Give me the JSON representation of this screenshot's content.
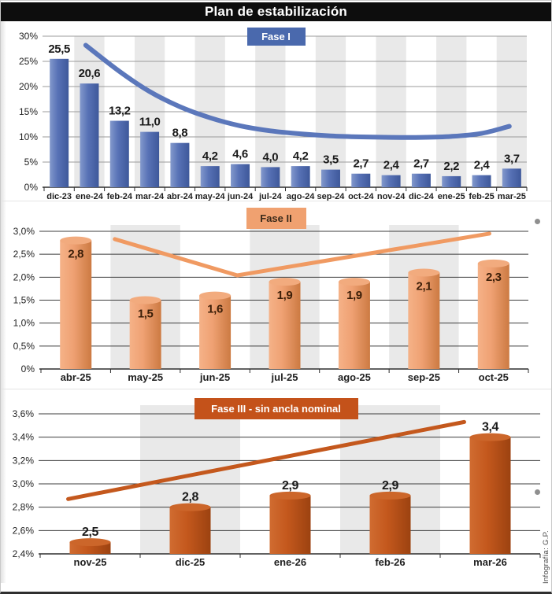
{
  "title": "Plan de estabilización",
  "footer_credit": "Infografía: G.P.",
  "colors": {
    "title_bar_bg": "#0d0d0d",
    "title_text": "#ffffff",
    "column_band": "#e9e9e9",
    "axis_line": "#2e2e2e",
    "axis_text": "#222222",
    "side_dot": "#8f8f8f",
    "credit_text": "#444444"
  },
  "chart_data": [
    {
      "type": "bar",
      "phase_label": "Fase I",
      "badge_bg": "#4a69ad",
      "badge_text_color": "#ffffff",
      "bar_color": "#5872b6",
      "bar_color_light": "#8399cc",
      "bar_color_dark": "#3e589a",
      "line_color": "#5b77bb",
      "grid_color": "#9b9b9b",
      "label_color": "#1a1a1a",
      "categories": [
        "dic-23",
        "ene-24",
        "feb-24",
        "mar-24",
        "abr-24",
        "may-24",
        "jun-24",
        "jul-24",
        "ago-24",
        "sep-24",
        "oct-24",
        "nov-24",
        "dic-24",
        "ene-25",
        "feb-25",
        "mar-25"
      ],
      "values": [
        25.5,
        20.6,
        13.2,
        11.0,
        8.8,
        4.2,
        4.6,
        4.0,
        4.2,
        3.5,
        2.7,
        2.4,
        2.7,
        2.2,
        2.4,
        3.7
      ],
      "value_labels": [
        "25,5",
        "20,6",
        "13,2",
        "11,0",
        "8,8",
        "4,2",
        "4,6",
        "4,0",
        "4,2",
        "3,5",
        "2,7",
        "2,4",
        "2,7",
        "2,2",
        "2,4",
        "3,7"
      ],
      "y_ticks": [
        "30%",
        "25%",
        "20%",
        "15%",
        "10%",
        "5%",
        "0%"
      ],
      "ylim": [
        0,
        30
      ],
      "grid": true,
      "shaded_columns": [
        1,
        3,
        5,
        7,
        9,
        11,
        13,
        15
      ],
      "trend_line": {
        "style": "smooth",
        "points": [
          [
            0.88,
            28.2
          ],
          [
            2,
            23.0
          ],
          [
            3,
            19.0
          ],
          [
            4,
            16.0
          ],
          [
            5,
            13.8
          ],
          [
            6,
            12.2
          ],
          [
            7,
            11.2
          ],
          [
            8,
            10.6
          ],
          [
            9,
            10.2
          ],
          [
            10,
            10.0
          ],
          [
            11,
            9.9
          ],
          [
            12,
            9.9
          ],
          [
            13,
            10.1
          ],
          [
            14,
            10.7
          ],
          [
            14.92,
            12.1
          ]
        ]
      }
    },
    {
      "type": "bar",
      "phase_label": "Fase II",
      "badge_bg": "#f0a170",
      "badge_text_color": "#3a2a1a",
      "bar_color": "#efa173",
      "bar_color_light": "#f5b288",
      "bar_color_dark": "#cc7a42",
      "cap_color": "#f2ab7e",
      "line_color": "#f09a62",
      "grid_color": "#3d3d3d",
      "label_color": "#3b1e08",
      "categories": [
        "abr-25",
        "may-25",
        "jun-25",
        "jul-25",
        "ago-25",
        "sep-25",
        "oct-25"
      ],
      "values": [
        2.8,
        1.5,
        1.6,
        1.9,
        1.9,
        2.1,
        2.3
      ],
      "value_labels": [
        "2,8",
        "1,5",
        "1,6",
        "1,9",
        "1,9",
        "2,1",
        "2,3"
      ],
      "y_ticks": [
        "3,0%",
        "2,5%",
        "2,0%",
        "1,5%",
        "1,0%",
        "0,5%",
        "0%"
      ],
      "ylim": [
        0,
        3.0
      ],
      "grid": true,
      "shaded_columns": [
        1,
        3,
        5
      ],
      "trend_line": {
        "style": "polyline",
        "points": [
          [
            0.56,
            2.83
          ],
          [
            2.32,
            2.04
          ],
          [
            5.94,
            2.95
          ]
        ]
      }
    },
    {
      "type": "bar",
      "phase_label": "Fase III - sin ancla nominal",
      "badge_bg": "#c4521a",
      "badge_text_color": "#ffffff",
      "bar_color": "#c4581d",
      "bar_color_light": "#d06c31",
      "bar_color_dark": "#9c4210",
      "cap_color": "#cc662a",
      "line_color": "#c4581d",
      "grid_color": "#3d3d3d",
      "label_color": "#1a1a1a",
      "categories": [
        "nov-25",
        "dic-25",
        "ene-26",
        "feb-26",
        "mar-26"
      ],
      "values": [
        2.5,
        2.8,
        2.9,
        2.9,
        3.4
      ],
      "value_labels": [
        "2,5",
        "2,8",
        "2,9",
        "2,9",
        "3,4"
      ],
      "y_ticks": [
        "3,6%",
        "3,4%",
        "3,2%",
        "3,0%",
        "2,8%",
        "2,6%",
        "2,4%"
      ],
      "ylim": [
        2.4,
        3.6
      ],
      "grid": true,
      "shaded_columns": [
        1,
        3
      ],
      "trend_line": {
        "style": "polyline",
        "points": [
          [
            -0.22,
            2.87
          ],
          [
            3.74,
            3.53
          ]
        ]
      }
    }
  ]
}
